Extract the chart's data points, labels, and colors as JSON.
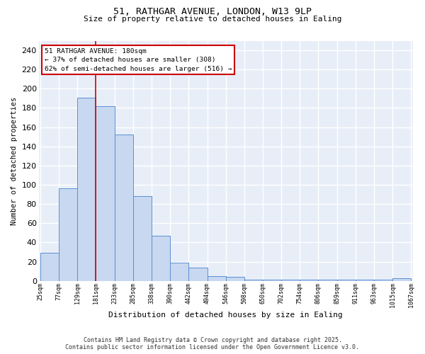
{
  "title_line1": "51, RATHGAR AVENUE, LONDON, W13 9LP",
  "title_line2": "Size of property relative to detached houses in Ealing",
  "xlabel": "Distribution of detached houses by size in Ealing",
  "ylabel": "Number of detached properties",
  "bar_edges": [
    25,
    77,
    129,
    181,
    233,
    285,
    338,
    390,
    442,
    494,
    546,
    598,
    650,
    702,
    754,
    806,
    859,
    911,
    963,
    1015,
    1067
  ],
  "bar_heights": [
    29,
    96,
    191,
    182,
    152,
    88,
    47,
    19,
    14,
    5,
    4,
    1,
    1,
    1,
    1,
    1,
    1,
    1,
    1,
    3
  ],
  "bar_color": "#c8d8f0",
  "bar_edge_color": "#5b8fd4",
  "vline_x": 181,
  "vline_color": "#cc0000",
  "ylim": [
    0,
    250
  ],
  "yticks": [
    0,
    20,
    40,
    60,
    80,
    100,
    120,
    140,
    160,
    180,
    200,
    220,
    240
  ],
  "annotation_box_text": "51 RATHGAR AVENUE: 180sqm\n← 37% of detached houses are smaller (308)\n62% of semi-detached houses are larger (516) →",
  "footer_line1": "Contains HM Land Registry data © Crown copyright and database right 2025.",
  "footer_line2": "Contains public sector information licensed under the Open Government Licence v3.0.",
  "background_color": "#e8eef8",
  "grid_color": "#ffffff",
  "tick_labels": [
    "25sqm",
    "77sqm",
    "129sqm",
    "181sqm",
    "233sqm",
    "285sqm",
    "338sqm",
    "390sqm",
    "442sqm",
    "494sqm",
    "546sqm",
    "598sqm",
    "650sqm",
    "702sqm",
    "754sqm",
    "806sqm",
    "859sqm",
    "911sqm",
    "963sqm",
    "1015sqm",
    "1067sqm"
  ]
}
